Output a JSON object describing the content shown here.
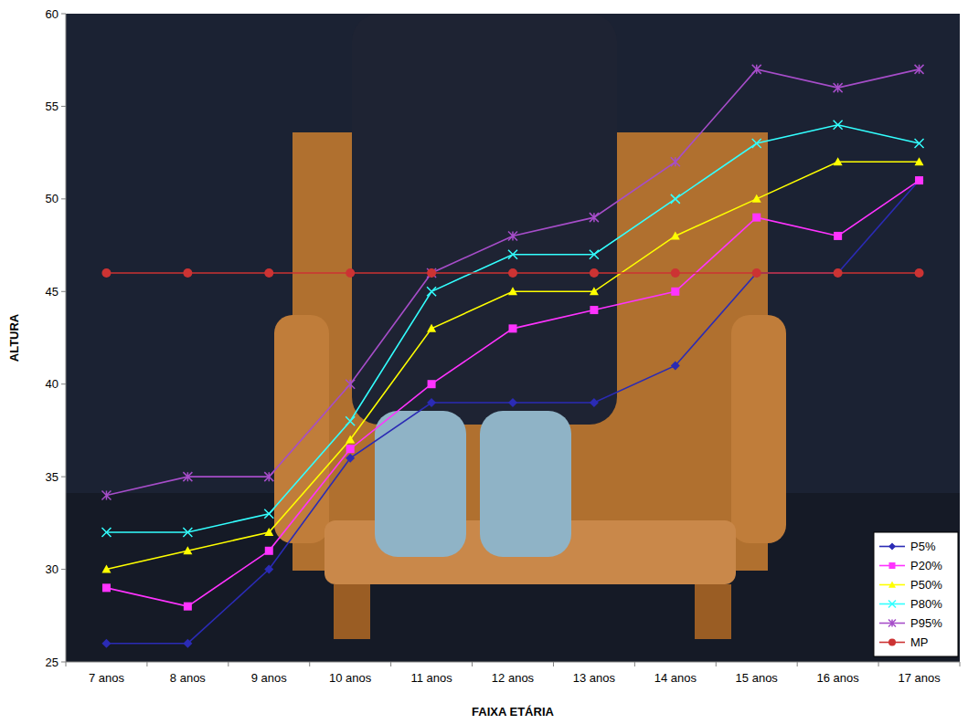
{
  "chart_data": {
    "type": "line",
    "x_label": "FAIXA ETÁRIA",
    "y_label": "ALTURA",
    "categories": [
      "7 anos",
      "8 anos",
      "9 anos",
      "10 anos",
      "11 anos",
      "12 anos",
      "13 anos",
      "14 anos",
      "15 anos",
      "16 anos",
      "17 anos"
    ],
    "series": [
      {
        "name": "P5%",
        "color": "#2b2bb5",
        "marker": "diamond",
        "values": [
          26,
          26,
          30,
          36,
          39,
          39,
          39,
          41,
          46,
          46,
          51
        ]
      },
      {
        "name": "P20%",
        "color": "#ff33ff",
        "marker": "square",
        "values": [
          29,
          28,
          31,
          36.5,
          40,
          43,
          44,
          45,
          49,
          48,
          51
        ]
      },
      {
        "name": "P50%",
        "color": "#ffff00",
        "marker": "triangle",
        "values": [
          30,
          31,
          32,
          37,
          43,
          45,
          45,
          48,
          50,
          52,
          52
        ]
      },
      {
        "name": "P80%",
        "color": "#33ffff",
        "marker": "x",
        "values": [
          32,
          32,
          33,
          38,
          45,
          47,
          47,
          50,
          53,
          54,
          53
        ]
      },
      {
        "name": "P95%",
        "color": "#a64dc9",
        "marker": "star",
        "values": [
          34,
          35,
          35,
          40,
          46,
          48,
          49,
          52,
          57,
          56,
          57
        ]
      },
      {
        "name": "MP",
        "color": "#cc3333",
        "marker": "circle",
        "values": [
          46,
          46,
          46,
          46,
          46,
          46,
          46,
          46,
          46,
          46,
          46
        ]
      }
    ],
    "ylim": [
      25,
      60
    ],
    "yticks": [
      25,
      30,
      35,
      40,
      45,
      50,
      55,
      60
    ],
    "grid": false,
    "legend": "lower right"
  }
}
